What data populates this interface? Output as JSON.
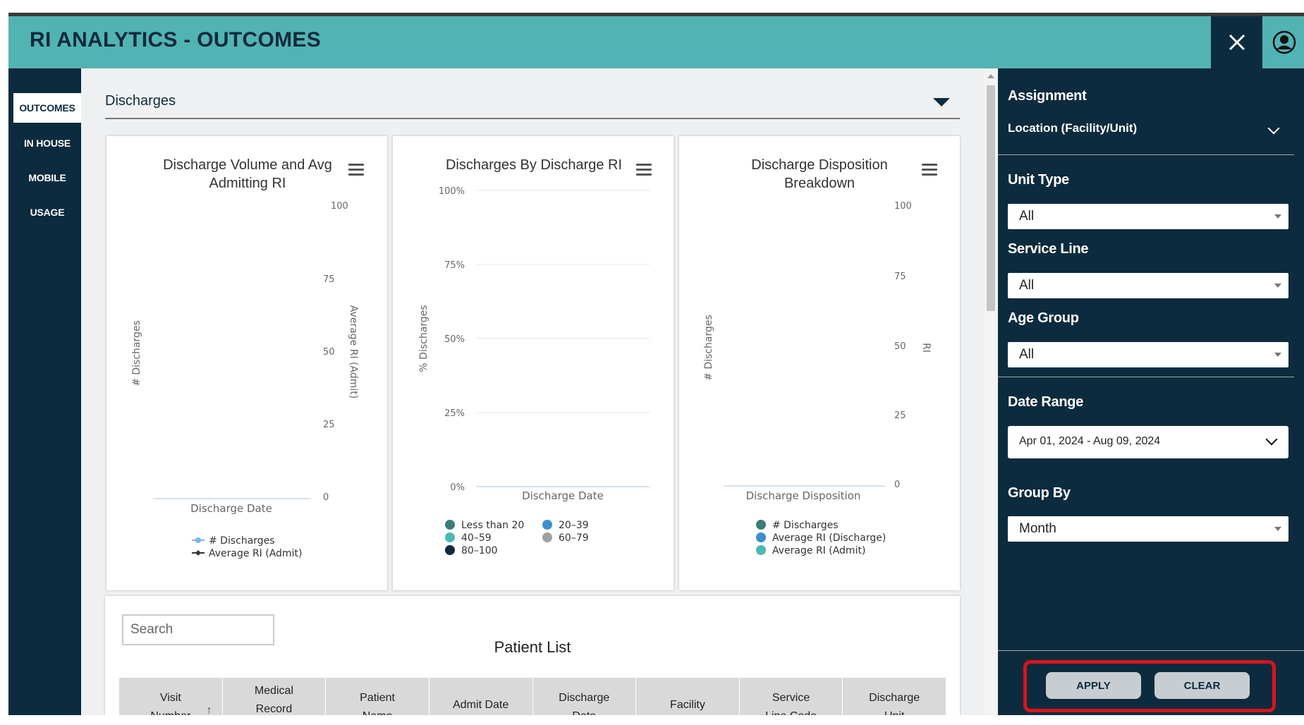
{
  "app": {
    "title": "RI ANALYTICS - OUTCOMES"
  },
  "nav": {
    "items": [
      {
        "label": "OUTCOMES",
        "active": true
      },
      {
        "label": "IN HOUSE",
        "active": false
      },
      {
        "label": "MOBILE",
        "active": false
      },
      {
        "label": "USAGE",
        "active": false
      }
    ]
  },
  "section": {
    "label": "Discharges"
  },
  "charts": {
    "volume": {
      "title_line1": "Discharge Volume and Avg",
      "title_line2": "Admitting RI",
      "ylabel": "# Discharges",
      "y2label": "Average RI (Admit)",
      "xlabel": "Discharge Date",
      "legend": [
        "# Discharges",
        "Average RI (Admit)"
      ]
    },
    "byri": {
      "title": "Discharges By Discharge RI",
      "ylabel": "% Discharges",
      "xlabel": "Discharge Date",
      "legend": [
        "Less than 20",
        "20–39",
        "40–59",
        "60–79",
        "80–100"
      ]
    },
    "disposition": {
      "title_line1": "Discharge Disposition",
      "title_line2": "Breakdown",
      "ylabel": "# Discharges",
      "y2label": "RI",
      "xlabel": "Discharge Disposition",
      "legend": [
        "# Discharges",
        "Average RI (Discharge)",
        "Average RI (Admit)"
      ]
    }
  },
  "chart_data": [
    {
      "type": "line",
      "title": "Discharge Volume and Avg Admitting RI",
      "xlabel": "Discharge Date",
      "ylabel": "# Discharges",
      "y2label": "Average RI (Admit)",
      "y2lim": [
        0,
        100
      ],
      "y2ticks": [
        "0",
        "25",
        "50",
        "75",
        "100"
      ],
      "series": [
        {
          "name": "# Discharges",
          "values": []
        },
        {
          "name": "Average RI (Admit)",
          "values": []
        }
      ],
      "colors": {
        "# Discharges": "#7cb5ec",
        "Average RI (Admit)": "#333333"
      }
    },
    {
      "type": "bar",
      "title": "Discharges By Discharge RI",
      "xlabel": "Discharge Date",
      "ylabel": "% Discharges",
      "ylim": [
        0,
        100
      ],
      "yticks": [
        "0%",
        "25%",
        "50%",
        "75%",
        "100%"
      ],
      "series": [
        {
          "name": "Less than 20",
          "values": []
        },
        {
          "name": "20–39",
          "values": []
        },
        {
          "name": "40–59",
          "values": []
        },
        {
          "name": "60–79",
          "values": []
        },
        {
          "name": "80–100",
          "values": []
        }
      ],
      "colors": {
        "Less than 20": "#3b7d78",
        "20–39": "#3a8fd0",
        "40–59": "#4ab9b1",
        "60–79": "#a0a0a0",
        "80–100": "#0d2b3e"
      }
    },
    {
      "type": "bar",
      "title": "Discharge Disposition Breakdown",
      "xlabel": "Discharge Disposition",
      "ylabel": "# Discharges",
      "y2label": "RI",
      "y2lim": [
        0,
        100
      ],
      "y2ticks": [
        "0",
        "25",
        "50",
        "75",
        "100"
      ],
      "series": [
        {
          "name": "# Discharges",
          "values": []
        },
        {
          "name": "Average RI (Discharge)",
          "values": []
        },
        {
          "name": "Average RI (Admit)",
          "values": []
        }
      ],
      "colors": {
        "# Discharges": "#3b7d78",
        "Average RI (Discharge)": "#3a8fd0",
        "Average RI (Admit)": "#4ab9b1"
      }
    }
  ],
  "patient_list": {
    "search_placeholder": "Search",
    "title": "Patient List",
    "columns": [
      {
        "line1": "Visit",
        "line2": "Number"
      },
      {
        "line1": "Medical",
        "line2": "Record"
      },
      {
        "line1": "Patient",
        "line2": "Name"
      },
      {
        "line1": "",
        "line2": "Admit Date"
      },
      {
        "line1": "Discharge",
        "line2": "Date"
      },
      {
        "line1": "",
        "line2": "Facility"
      },
      {
        "line1": "Service",
        "line2": "Line Code"
      },
      {
        "line1": "Discharge",
        "line2": "Unit"
      }
    ]
  },
  "filters": {
    "assignment_label": "Assignment",
    "location_label": "Location (Facility/Unit)",
    "unit_type_label": "Unit Type",
    "unit_type_value": "All",
    "service_line_label": "Service Line",
    "service_line_value": "All",
    "age_group_label": "Age Group",
    "age_group_value": "All",
    "date_range_label": "Date Range",
    "date_range_value": "Apr 01, 2024 - Aug 09, 2024",
    "group_by_label": "Group By",
    "group_by_value": "Month",
    "apply_label": "APPLY",
    "clear_label": "CLEAR"
  },
  "colors": {
    "header": "#52b3b3",
    "dark": "#0d2b3e",
    "highlight": "#d8141b"
  }
}
